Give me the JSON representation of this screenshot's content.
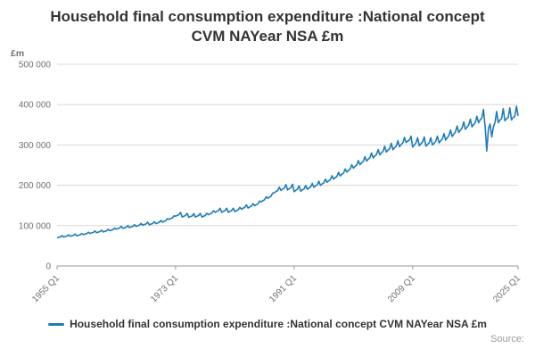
{
  "title": {
    "line1": "Household final consumption expenditure :National concept",
    "line2": "CVM NAYear NSA £m"
  },
  "legend": {
    "label": "Household final consumption expenditure :National concept CVM NAYear NSA £m"
  },
  "source": {
    "label": "Source:"
  },
  "colors": {
    "line": "#1e7cb8",
    "grid": "#d8d8d8",
    "zero_axis": "#999999",
    "tick_text": "#707070",
    "title_text": "#333333",
    "source_text": "#999999"
  },
  "chart_data": {
    "type": "line",
    "title": "Household final consumption expenditure :National concept CVM NAYear NSA £m",
    "ylabel": "£m",
    "xlabel": "",
    "grid": true,
    "legend_position": "bottom",
    "ylim": [
      0,
      500000
    ],
    "yticks": [
      0,
      100000,
      200000,
      300000,
      400000,
      500000
    ],
    "ytick_labels": [
      "0",
      "100 000",
      "200 000",
      "300 000",
      "400 000",
      "500 000"
    ],
    "x_axis_type": "quarterly",
    "x_range": [
      "1955 Q1",
      "2025 Q1"
    ],
    "points_per_year": 4,
    "xticks": [
      {
        "label": "1955 Q1",
        "index": 0
      },
      {
        "label": "1973 Q1",
        "index": 72
      },
      {
        "label": "1991 Q1",
        "index": 144
      },
      {
        "label": "2009 Q1",
        "index": 216
      },
      {
        "label": "2025 Q1",
        "index": 280
      }
    ],
    "value_unit": "£m",
    "value_scale": 1000,
    "series": [
      {
        "name": "Household final consumption expenditure :National concept CVM NAYear NSA £m",
        "values_thousands": [
          69.8,
          71.1,
          72,
          75.2,
          71.8,
          73.1,
          74,
          77.3,
          73.7,
          75.1,
          76,
          79.4,
          74.7,
          76.1,
          77,
          80.5,
          77.6,
          79,
          80,
          83.6,
          80.5,
          82,
          83,
          86.7,
          82.5,
          84,
          85,
          88.8,
          84.4,
          85.9,
          87,
          90.9,
          87.3,
          88.9,
          90,
          94.1,
          91.2,
          92.9,
          94,
          98.2,
          93.1,
          94.8,
          96,
          100.3,
          95.1,
          96.8,
          98,
          102.4,
          98,
          99.8,
          101,
          105.5,
          100.9,
          102.8,
          104,
          108.7,
          101.9,
          103.7,
          105,
          109.7,
          104.8,
          106.7,
          108,
          112.9,
          108.6,
          110.7,
          112,
          117,
          115.4,
          117.6,
          119,
          124.4,
          123.2,
          125.5,
          127,
          132.7,
          121.3,
          123.5,
          125,
          130.6,
          120.3,
          122.5,
          124,
          129.6,
          121.3,
          123.5,
          125,
          130.6,
          121.3,
          123.5,
          125,
          130.6,
          127.1,
          129.4,
          131,
          136.9,
          132.9,
          135.4,
          137,
          143.2,
          132.9,
          135.4,
          137,
          143.2,
          132.9,
          135.4,
          137,
          143.2,
          134.8,
          137.3,
          139,
          145.3,
          140.7,
          143.3,
          145,
          151.5,
          143.6,
          146.2,
          148,
          154.7,
          149.4,
          152.2,
          154,
          161,
          159.1,
          162,
          164,
          171.4,
          167.8,
          170.9,
          173,
          180.8,
          181.4,
          184.8,
          187,
          195.4,
          187.2,
          190.7,
          193,
          201.7,
          188.2,
          191.7,
          194,
          202.7,
          184.3,
          187.7,
          190,
          198.6,
          185.3,
          188.7,
          191,
          199.6,
          190.1,
          193.6,
          196,
          204.8,
          195,
          198.6,
          201,
          210,
          199.8,
          203.5,
          206,
          215.3,
          207.6,
          211.4,
          214,
          223.6,
          215.3,
          219.3,
          222,
          232,
          223.1,
          227.2,
          230,
          240.4,
          232.8,
          237.1,
          240,
          250.8,
          242.5,
          247,
          250,
          261.3,
          251.2,
          255.9,
          259,
          270.7,
          260,
          264.8,
          268,
          280.1,
          267.7,
          272.7,
          276,
          288.4,
          275.5,
          280.6,
          284,
          296.8,
          282.3,
          287.5,
          291,
          304.1,
          288.1,
          293.4,
          297,
          310.4,
          295.9,
          301.3,
          305,
          318.7,
          306,
          310,
          312,
          322,
          295,
          300,
          305,
          318,
          298,
          303,
          307,
          320,
          297,
          301,
          305,
          318,
          300,
          304,
          309,
          322,
          305,
          310,
          315,
          328,
          312,
          318,
          323,
          337,
          321,
          327,
          332,
          347,
          331,
          337,
          342,
          357,
          339,
          344,
          349,
          364,
          345,
          350,
          355,
          371,
          355,
          362,
          367,
          388,
          345,
          285,
          340,
          352,
          320,
          345,
          355,
          383,
          355,
          362,
          365,
          390,
          360,
          365,
          368,
          392,
          362,
          368,
          371,
          396,
          372
        ]
      }
    ]
  }
}
